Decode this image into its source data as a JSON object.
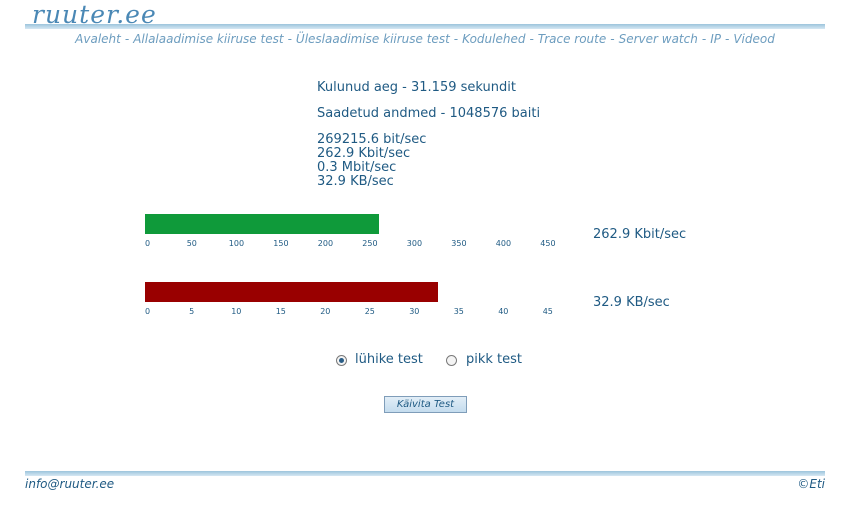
{
  "header": {
    "logo": "ruuter.ee"
  },
  "nav": {
    "items": [
      "Avaleht",
      "Allalaadimise kiiruse test",
      "Üleslaadimise kiiruse test",
      "Kodulehed",
      "Trace route",
      "Server watch",
      "IP",
      "Videod"
    ],
    "separator": "-"
  },
  "results": {
    "elapsed": "Kulunud aeg - 31.159 sekundit",
    "sent": "Saadetud andmed - 1048576 baiti",
    "bitsec": "269215.6 bit/sec",
    "kbitsec": "262.9 Kbit/sec",
    "mbitsec": "0.3 Mbit/sec",
    "kbsec": "32.9 KB/sec"
  },
  "gauges": [
    {
      "label": "262.9 Kbit/sec",
      "value": 262.9,
      "max": 450,
      "color": "#0f9a3a",
      "ticks": [
        "0",
        "50",
        "100",
        "150",
        "200",
        "250",
        "300",
        "350",
        "400",
        "450"
      ]
    },
    {
      "label": "32.9 KB/sec",
      "value": 32.9,
      "max": 45,
      "color": "#990000",
      "ticks": [
        "0",
        "5",
        "10",
        "15",
        "20",
        "25",
        "30",
        "35",
        "40",
        "45"
      ]
    }
  ],
  "options": {
    "short_label": "lühike test",
    "long_label": "pikk test",
    "selected": "short"
  },
  "button": {
    "label": "Käivita Test"
  },
  "footer": {
    "email": "info@ruuter.ee",
    "copyright": "©Eti"
  }
}
